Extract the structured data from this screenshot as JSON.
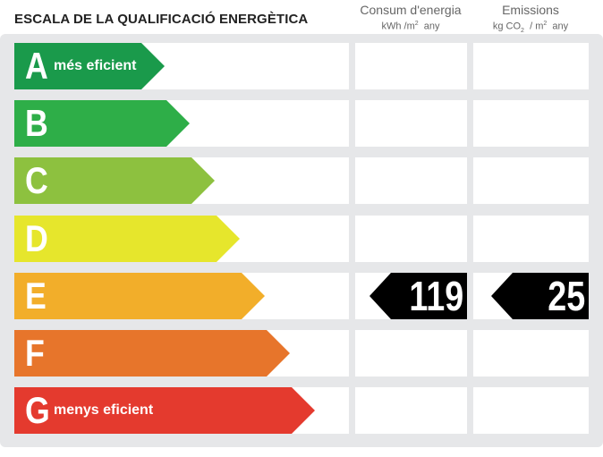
{
  "title": "ESCALA DE LA QUALIFICACIÓ ENERGÈTICA",
  "columns": {
    "consum": {
      "label": "Consum d'energia",
      "unit_pre": "kWh /m",
      "unit_sup": "2",
      "unit_post": "any"
    },
    "emissions": {
      "label": "Emissions",
      "unit_pre": "kg CO",
      "unit_sub": "2",
      "unit_mid": "/ m",
      "unit_sup": "2",
      "unit_post": "any"
    }
  },
  "ratings": [
    {
      "letter": "A",
      "note": "més eficient",
      "color": "#1a9a4b"
    },
    {
      "letter": "B",
      "note": "",
      "color": "#2eae48"
    },
    {
      "letter": "C",
      "note": "",
      "color": "#8dc13f"
    },
    {
      "letter": "D",
      "note": "",
      "color": "#e6e62c"
    },
    {
      "letter": "E",
      "note": "",
      "color": "#f2ae2a"
    },
    {
      "letter": "F",
      "note": "",
      "color": "#e7752b"
    },
    {
      "letter": "G",
      "note": "menys eficient",
      "color": "#e43a2e"
    }
  ],
  "result": {
    "rating": "E",
    "consum": "119",
    "emissions": "25"
  }
}
